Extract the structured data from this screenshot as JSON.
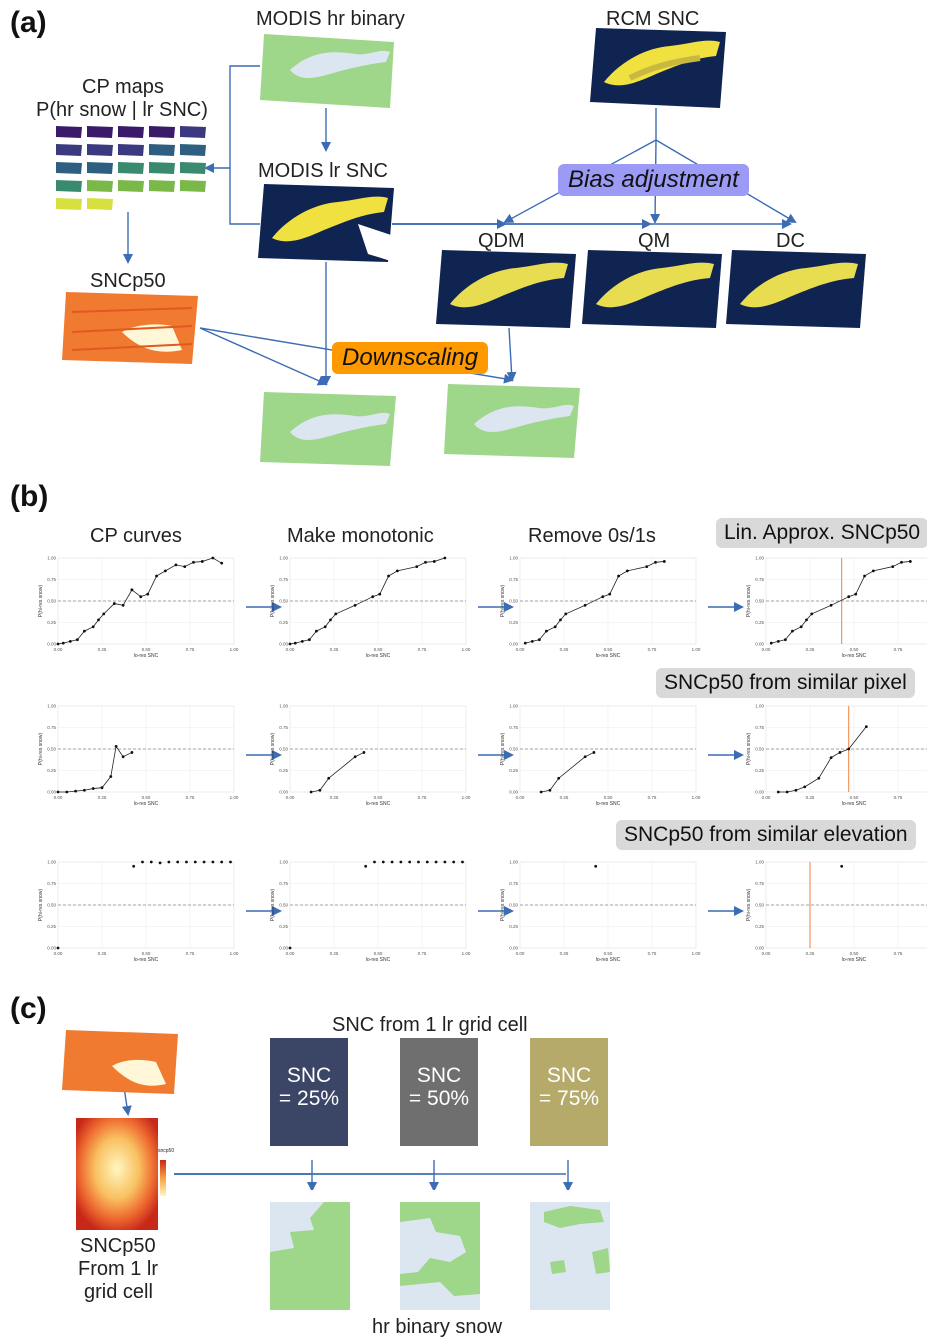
{
  "panel_a": {
    "tag": "(a)",
    "modis_hr_binary": "MODIS hr binary",
    "rcm_snc": "RCM SNC",
    "cp_maps_line1": "CP maps",
    "cp_maps_line2": "P(hr snow | lr SNC)",
    "modis_lr_snc": "MODIS lr SNC",
    "bias_adjustment": "Bias adjustment",
    "qdm": "QDM",
    "qm": "QM",
    "dc": "DC",
    "sncp50": "SNCp50",
    "downscaling": "Downscaling",
    "colors": {
      "bias": "#9b9bf5",
      "downscale": "#ff9900",
      "arrow": "#3c6cb4",
      "green": "#9ed68a",
      "navy": "#0f2450",
      "yellow": "#f0e040"
    }
  },
  "panel_b": {
    "tag": "(b)",
    "col_titles": [
      "CP curves",
      "Make monotonic",
      "Remove 0s/1s"
    ],
    "row_boxes": [
      "Lin. Approx. SNCp50",
      "SNCp50 from similar pixel",
      "SNCp50 from similar elevation"
    ],
    "ylabel": "P(hi-res snow)",
    "xlabel": "lo-res SNC",
    "xticks": [
      "0.00",
      "0.25",
      "0.50",
      "0.75",
      "1.00"
    ],
    "yticks": [
      "0.00",
      "0.25",
      "0.50",
      "0.75",
      "1.00"
    ]
  },
  "chart_data": [
    {
      "type": "line",
      "title": "CP curves",
      "row": 1,
      "x": [
        0.0,
        0.03,
        0.07,
        0.11,
        0.15,
        0.2,
        0.23,
        0.26,
        0.32,
        0.37,
        0.42,
        0.47,
        0.51,
        0.56,
        0.61,
        0.67,
        0.72,
        0.77,
        0.82,
        0.88,
        0.93
      ],
      "y": [
        0.0,
        0.01,
        0.03,
        0.05,
        0.15,
        0.2,
        0.28,
        0.35,
        0.47,
        0.45,
        0.63,
        0.55,
        0.58,
        0.79,
        0.85,
        0.92,
        0.9,
        0.95,
        0.96,
        1.0,
        0.94
      ]
    },
    {
      "type": "line",
      "title": "Make monotonic",
      "row": 1,
      "x": [
        0.0,
        0.03,
        0.07,
        0.11,
        0.15,
        0.2,
        0.23,
        0.26,
        0.37,
        0.47,
        0.51,
        0.56,
        0.61,
        0.72,
        0.77,
        0.82,
        0.88
      ],
      "y": [
        0.0,
        0.01,
        0.03,
        0.05,
        0.15,
        0.2,
        0.28,
        0.35,
        0.45,
        0.55,
        0.58,
        0.79,
        0.85,
        0.9,
        0.95,
        0.96,
        1.0
      ]
    },
    {
      "type": "line",
      "title": "Remove 0s/1s",
      "row": 1,
      "x": [
        0.03,
        0.07,
        0.11,
        0.15,
        0.2,
        0.23,
        0.26,
        0.37,
        0.47,
        0.51,
        0.56,
        0.61,
        0.72,
        0.77,
        0.82
      ],
      "y": [
        0.01,
        0.03,
        0.05,
        0.15,
        0.2,
        0.28,
        0.35,
        0.45,
        0.55,
        0.58,
        0.79,
        0.85,
        0.9,
        0.95,
        0.96
      ]
    },
    {
      "type": "line",
      "title": "Lin. Approx. SNCp50",
      "row": 1,
      "x": [
        0.03,
        0.07,
        0.11,
        0.15,
        0.2,
        0.23,
        0.26,
        0.37,
        0.47,
        0.51,
        0.56,
        0.61,
        0.72,
        0.77,
        0.82
      ],
      "y": [
        0.01,
        0.03,
        0.05,
        0.15,
        0.2,
        0.28,
        0.35,
        0.45,
        0.55,
        0.58,
        0.79,
        0.85,
        0.9,
        0.95,
        0.96
      ],
      "vline": 0.43
    },
    {
      "type": "line",
      "row": 2,
      "x": [
        0.0,
        0.05,
        0.1,
        0.15,
        0.2,
        0.25,
        0.3,
        0.33,
        0.37,
        0.42
      ],
      "y": [
        0.0,
        0.0,
        0.01,
        0.02,
        0.04,
        0.05,
        0.18,
        0.53,
        0.41,
        0.46
      ]
    },
    {
      "type": "line",
      "row": 2,
      "x": [
        0.12,
        0.17,
        0.22,
        0.37,
        0.42
      ],
      "y": [
        0.0,
        0.02,
        0.16,
        0.41,
        0.46
      ]
    },
    {
      "type": "line",
      "row": 2,
      "x": [
        0.12,
        0.17,
        0.22,
        0.37,
        0.42
      ],
      "y": [
        0.0,
        0.02,
        0.16,
        0.41,
        0.46
      ]
    },
    {
      "type": "line",
      "row": 2,
      "x": [
        0.07,
        0.12,
        0.17,
        0.22,
        0.3,
        0.37,
        0.42,
        0.47,
        0.57
      ],
      "y": [
        0.0,
        0.0,
        0.02,
        0.06,
        0.16,
        0.4,
        0.46,
        0.5,
        0.76
      ],
      "vline": 0.47
    },
    {
      "type": "scatter",
      "row": 3,
      "x": [
        0.0,
        0.43,
        0.48,
        0.53,
        0.58,
        0.63,
        0.68,
        0.73,
        0.78,
        0.83,
        0.88,
        0.93,
        0.98
      ],
      "y": [
        0.0,
        0.95,
        1.0,
        1.0,
        0.99,
        1.0,
        1.0,
        1.0,
        1.0,
        1.0,
        1.0,
        1.0,
        1.0
      ]
    },
    {
      "type": "scatter",
      "row": 3,
      "x": [
        0.0,
        0.43,
        0.48,
        0.53,
        0.58,
        0.63,
        0.68,
        0.73,
        0.78,
        0.83,
        0.88,
        0.93,
        0.98
      ],
      "y": [
        0.0,
        0.95,
        1.0,
        1.0,
        1.0,
        1.0,
        1.0,
        1.0,
        1.0,
        1.0,
        1.0,
        1.0,
        1.0
      ]
    },
    {
      "type": "scatter",
      "row": 3,
      "x": [
        0.43
      ],
      "y": [
        0.95
      ]
    },
    {
      "type": "scatter",
      "row": 3,
      "x": [
        0.43
      ],
      "y": [
        0.95
      ],
      "vline": 0.25
    }
  ],
  "panel_c": {
    "tag": "(c)",
    "snc_from_cell": "SNC from 1 lr grid cell",
    "cards": [
      {
        "line1": "SNC",
        "line2": "= 25%",
        "color": "#3b4566"
      },
      {
        "line1": "SNC",
        "line2": "= 50%",
        "color": "#6f6f6f"
      },
      {
        "line1": "SNC",
        "line2": "= 75%",
        "color": "#b5aa6a"
      }
    ],
    "sncp50_label": [
      "SNCp50",
      "From 1 lr",
      "grid cell"
    ],
    "hr_binary_snow": "hr binary snow",
    "legend_title": "sncp50",
    "legend_ticks": [
      "1.00",
      "0.75",
      "0.50",
      "0.25",
      "0.00"
    ]
  }
}
